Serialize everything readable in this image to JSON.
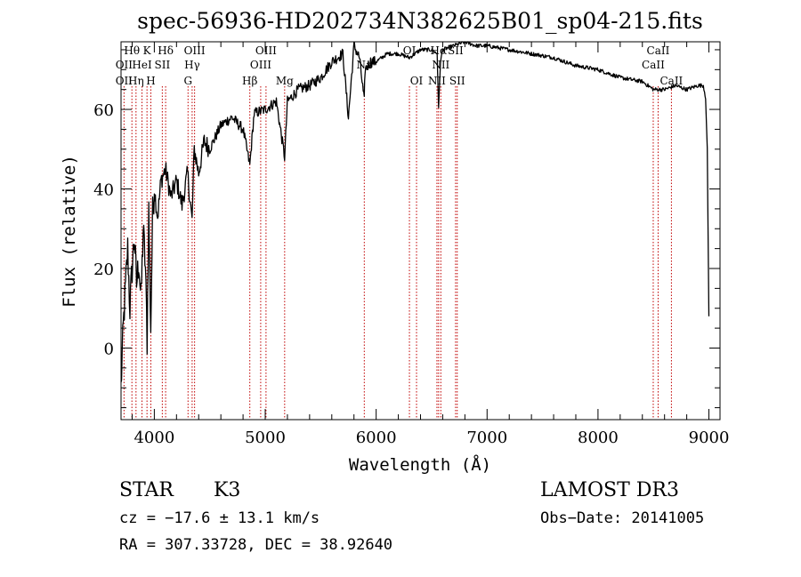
{
  "chart_data": {
    "type": "line",
    "title": "spec-56936-HD202734N382625B01_sp04-215.fits",
    "xlabel": "Wavelength (Å)",
    "ylabel": "Flux (relative)",
    "xlim": [
      3700,
      9100
    ],
    "ylim": [
      -18,
      77
    ],
    "xticks": [
      4000,
      5000,
      6000,
      7000,
      8000,
      9000
    ],
    "yticks": [
      0,
      20,
      40,
      60
    ],
    "series": [
      {
        "name": "spectrum",
        "x": [
          3700,
          3720,
          3740,
          3760,
          3780,
          3800,
          3820,
          3840,
          3860,
          3880,
          3900,
          3920,
          3935,
          3950,
          3968,
          3985,
          4000,
          4030,
          4060,
          4100,
          4150,
          4200,
          4250,
          4300,
          4340,
          4360,
          4400,
          4450,
          4500,
          4600,
          4700,
          4800,
          4861,
          4900,
          5000,
          5100,
          5175,
          5200,
          5300,
          5400,
          5500,
          5600,
          5700,
          5750,
          5800,
          5850,
          5893,
          5900,
          5950,
          6000,
          6100,
          6200,
          6300,
          6400,
          6500,
          6550,
          6563,
          6580,
          6600,
          6700,
          6800,
          6900,
          7000,
          7200,
          7400,
          7600,
          7800,
          8000,
          8200,
          8400,
          8500,
          8600,
          8700,
          8800,
          8900,
          8950,
          8970,
          8985,
          9000
        ],
        "values": [
          -10,
          5,
          15,
          25,
          10,
          20,
          28,
          16,
          22,
          12,
          30,
          20,
          2,
          35,
          5,
          34,
          40,
          33,
          42,
          45,
          38,
          42,
          36,
          44,
          32,
          50,
          44,
          52,
          50,
          56,
          58,
          55,
          46,
          59,
          60,
          62,
          48,
          62,
          65,
          66,
          68,
          72,
          74,
          58,
          76,
          73,
          62,
          70,
          72,
          72,
          74,
          74,
          73,
          75,
          75,
          74,
          60,
          72,
          75,
          76,
          77,
          76,
          76,
          75,
          74,
          73,
          71,
          70,
          68,
          67,
          65,
          65,
          66,
          65,
          66,
          66,
          63,
          50,
          8
        ]
      }
    ],
    "line_labels": [
      {
        "text": "Hθ",
        "wl": 3798,
        "row": 1
      },
      {
        "text": "OII",
        "wl": 3727,
        "row": 2
      },
      {
        "text": "OII",
        "wl": 3727,
        "row": 3
      },
      {
        "text": "K",
        "wl": 3934,
        "row": 1
      },
      {
        "text": "HeI",
        "wl": 3889,
        "row": 2
      },
      {
        "text": "Hη",
        "wl": 3835,
        "row": 3
      },
      {
        "text": "Hδ",
        "wl": 4102,
        "row": 1
      },
      {
        "text": "SII",
        "wl": 4072,
        "row": 2
      },
      {
        "text": "H",
        "wl": 3969,
        "row": 3
      },
      {
        "text": "OIII",
        "wl": 4363,
        "row": 1
      },
      {
        "text": "Hγ",
        "wl": 4341,
        "row": 2
      },
      {
        "text": "G",
        "wl": 4304,
        "row": 3
      },
      {
        "text": "OIII",
        "wl": 5007,
        "row": 1
      },
      {
        "text": "OIII",
        "wl": 4959,
        "row": 2
      },
      {
        "text": "Hβ",
        "wl": 4861,
        "row": 3
      },
      {
        "text": "Mg",
        "wl": 5175,
        "row": 3
      },
      {
        "text": "Na",
        "wl": 5893,
        "row": 2
      },
      {
        "text": "OI",
        "wl": 6300,
        "row": 1
      },
      {
        "text": "OI",
        "wl": 6364,
        "row": 3
      },
      {
        "text": "Hα",
        "wl": 6563,
        "row": 1
      },
      {
        "text": "SII",
        "wl": 6716,
        "row": 1
      },
      {
        "text": "NII",
        "wl": 6583,
        "row": 2
      },
      {
        "text": "NII",
        "wl": 6548,
        "row": 3
      },
      {
        "text": "SII",
        "wl": 6731,
        "row": 3
      },
      {
        "text": "CaII",
        "wl": 8542,
        "row": 1
      },
      {
        "text": "CaII",
        "wl": 8498,
        "row": 2
      },
      {
        "text": "CaII",
        "wl": 8662,
        "row": 3
      }
    ],
    "marker_lines": [
      3727,
      3798,
      3835,
      3889,
      3934,
      3969,
      4072,
      4102,
      4304,
      4341,
      4363,
      4861,
      4959,
      5007,
      5175,
      5893,
      6300,
      6364,
      6548,
      6563,
      6583,
      6716,
      6731,
      8498,
      8542,
      8662
    ],
    "colors": {
      "spectrum": "#000000",
      "marker": "#c00000",
      "axes": "#000000"
    }
  },
  "info": {
    "object_class": "STAR",
    "subclass": "K3",
    "survey": "LAMOST DR3",
    "cz": "cz = −17.6 ± 13.1 km/s",
    "obs_date": "Obs−Date: 20141005",
    "coords": "RA = 307.33728, DEC =  38.92640"
  }
}
